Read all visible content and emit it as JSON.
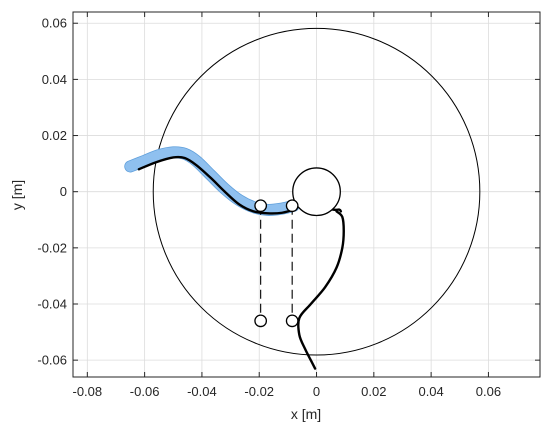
{
  "chart_data": {
    "type": "line",
    "title": "",
    "xlabel": "x [m]",
    "ylabel": "y [m]",
    "xlim": [
      -0.085,
      0.078
    ],
    "ylim": [
      -0.066,
      0.064
    ],
    "grid": true,
    "xticks": [
      -0.08,
      -0.06,
      -0.04,
      -0.02,
      0,
      0.02,
      0.04,
      0.06
    ],
    "xtick_labels": [
      "-0.08",
      "-0.06",
      "-0.04",
      "-0.02",
      "0",
      "0.02",
      "0.04",
      "0.06"
    ],
    "yticks": [
      -0.06,
      -0.04,
      -0.02,
      0,
      0.02,
      0.04,
      0.06
    ],
    "ytick_labels": [
      "-0.06",
      "-0.04",
      "-0.02",
      "0",
      "0.02",
      "0.04",
      "0.06"
    ],
    "colors": {
      "band": "#8fc0ef",
      "band_edge": "#5f9fdb",
      "line": "#000000"
    },
    "series": [
      {
        "kind": "band",
        "points": [
          [
            -0.065,
            0.009
          ],
          [
            -0.06,
            0.011
          ],
          [
            -0.055,
            0.013
          ],
          [
            -0.05,
            0.014
          ],
          [
            -0.046,
            0.0135
          ],
          [
            -0.042,
            0.011
          ],
          [
            -0.037,
            0.006
          ],
          [
            -0.032,
            0.001
          ],
          [
            -0.027,
            -0.003
          ],
          [
            -0.022,
            -0.0055
          ],
          [
            -0.017,
            -0.0065
          ],
          [
            -0.012,
            -0.006
          ],
          [
            -0.008,
            -0.005
          ]
        ]
      },
      {
        "kind": "curve",
        "points": [
          [
            -0.062,
            0.008
          ],
          [
            -0.056,
            0.0105
          ],
          [
            -0.05,
            0.0122
          ],
          [
            -0.046,
            0.012
          ],
          [
            -0.042,
            0.0095
          ],
          [
            -0.037,
            0.005
          ],
          [
            -0.032,
            0.0
          ],
          [
            -0.027,
            -0.0045
          ],
          [
            -0.022,
            -0.007
          ],
          [
            -0.017,
            -0.0077
          ],
          [
            -0.012,
            -0.0075
          ],
          [
            -0.008,
            -0.0063
          ],
          [
            -0.006,
            -0.005
          ]
        ]
      },
      {
        "kind": "curve",
        "points": [
          [
            0.007,
            -0.007
          ],
          [
            0.009,
            -0.009
          ],
          [
            0.0095,
            -0.014
          ],
          [
            0.009,
            -0.02
          ],
          [
            0.007,
            -0.027
          ],
          [
            0.003,
            -0.034
          ],
          [
            -0.002,
            -0.04
          ],
          [
            -0.006,
            -0.045
          ],
          [
            -0.006,
            -0.051
          ],
          [
            -0.004,
            -0.056
          ],
          [
            -0.002,
            -0.06
          ],
          [
            -0.0005,
            -0.063
          ]
        ]
      },
      {
        "kind": "curve",
        "points": [
          [
            0.0,
            0.0
          ],
          [
            0.002,
            -0.005
          ],
          [
            0.006,
            -0.0064
          ],
          [
            0.008,
            -0.0064
          ],
          [
            0.0085,
            -0.007
          ]
        ]
      },
      {
        "kind": "dashed",
        "points": [
          [
            -0.0195,
            -0.005
          ],
          [
            -0.0195,
            -0.046
          ]
        ]
      },
      {
        "kind": "dashed",
        "points": [
          [
            -0.0085,
            -0.005
          ],
          [
            -0.0085,
            -0.046
          ]
        ]
      }
    ],
    "circles": [
      {
        "cx": 0.0,
        "cy": 0.0,
        "r": 0.057,
        "kind": "thin"
      },
      {
        "cx": 0.0,
        "cy": 0.0,
        "r": 0.0083,
        "kind": "thick"
      },
      {
        "cx": -0.0195,
        "cy": -0.005,
        "r": 0.002,
        "kind": "thick"
      },
      {
        "cx": -0.0085,
        "cy": -0.005,
        "r": 0.002,
        "kind": "thick"
      },
      {
        "cx": -0.0195,
        "cy": -0.046,
        "r": 0.002,
        "kind": "thick"
      },
      {
        "cx": -0.0085,
        "cy": -0.046,
        "r": 0.002,
        "kind": "thick"
      }
    ]
  }
}
